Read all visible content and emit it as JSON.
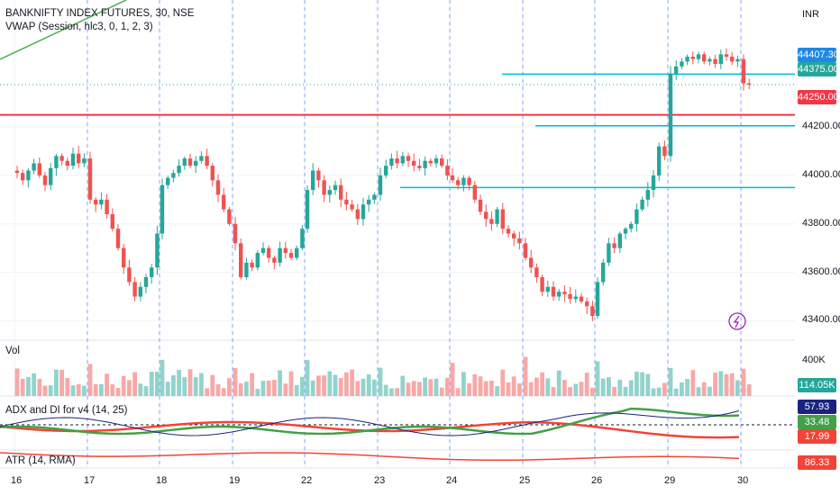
{
  "header": {
    "symbol": "BANKNIFTY INDEX FUTURES, 30, NSE",
    "indicator": "VWAP (Session, hlc3, 0, 1, 2, 3)",
    "currency": "INR"
  },
  "panes": {
    "volume_label": "Vol",
    "adx_label": "ADX and DI for v4 (14, 25)",
    "atr_label": "ATR (14, RMA)"
  },
  "price_tags": {
    "vwap": "44407.30",
    "last": "44375.00",
    "hline": "44250.00",
    "volume": "114.05K",
    "adx_plus": "57.93",
    "adx_mid": "33.48",
    "adx_minus": "17.99",
    "atr": "86.33"
  },
  "colors": {
    "up": "#26a69a",
    "down": "#ef5350",
    "vol_up": "#92d3cc",
    "vol_down": "#f7a9a7",
    "hline_red": "#f23645",
    "hline_cyan": "#00bcd4",
    "session_sep": "#2962ff",
    "grid": "#f0f3fa",
    "vwap_green": "#4caf50",
    "adx_navy": "#1a237e",
    "adx_green": "#43a047",
    "adx_red": "#f44336",
    "atr_red": "#f44336"
  },
  "chart_data": {
    "type": "candlestick",
    "title": "BANKNIFTY INDEX FUTURES, 30, NSE",
    "y_axis_ticks": [
      43400,
      43600,
      43800,
      44000,
      44200
    ],
    "y_tick_labels": [
      "43400.00",
      "43600.00",
      "43800.00",
      "44000.00",
      "44200.00"
    ],
    "ylim": [
      43320,
      44620
    ],
    "x_tick_labels": [
      "16",
      "17",
      "18",
      "19",
      "22",
      "23",
      "24",
      "25",
      "26",
      "29",
      "30"
    ],
    "volume_tick_label": "400K",
    "horizontal_lines": [
      {
        "price": 44418,
        "color": "cyan",
        "from_label": "25",
        "to_label": "end"
      },
      {
        "price": 44250,
        "color": "red",
        "from_label": "start",
        "to_label": "end"
      },
      {
        "price": 44205,
        "color": "cyan",
        "from_label": "25",
        "to_label": "end"
      },
      {
        "price": 43950,
        "color": "cyan",
        "from_label": "23",
        "to_label": "end"
      }
    ],
    "sessions": [
      {
        "day": "16",
        "closes": [
          44010,
          43980,
          44020,
          44050,
          44000,
          43960,
          44030,
          44080,
          44060,
          44040,
          44090,
          44050,
          44070
        ]
      },
      {
        "day": "17",
        "closes": [
          43900,
          43880,
          43900,
          43840,
          43780,
          43700,
          43620,
          43560,
          43500,
          43540,
          43580,
          43620,
          43760
        ]
      },
      {
        "day": "18",
        "closes": [
          43960,
          43990,
          44010,
          44040,
          44070,
          44040,
          44060,
          44080,
          44040,
          43980,
          43920,
          43860,
          43800
        ]
      },
      {
        "day": "19",
        "closes": [
          43720,
          43580,
          43640,
          43620,
          43680,
          43700,
          43660,
          43640,
          43700,
          43680,
          43660,
          43700,
          43780
        ]
      },
      {
        "day": "22",
        "closes": [
          43940,
          44020,
          43980,
          43920,
          43940,
          43960,
          43900,
          43880,
          43860,
          43820,
          43880,
          43900,
          43920
        ]
      },
      {
        "day": "23",
        "closes": [
          44000,
          44040,
          44070,
          44050,
          44080,
          44060,
          44040,
          44030,
          44060,
          44050,
          44070,
          44040,
          44000
        ]
      },
      {
        "day": "24",
        "closes": [
          43980,
          43960,
          43990,
          43960,
          43900,
          43850,
          43820,
          43800,
          43860,
          43780,
          43760,
          43740,
          43720
        ]
      },
      {
        "day": "25",
        "closes": [
          43660,
          43620,
          43580,
          43520,
          43540,
          43500,
          43520,
          43510,
          43490,
          43500,
          43480,
          43460,
          43420
        ]
      },
      {
        "day": "26",
        "closes": [
          43560,
          43640,
          43720,
          43700,
          43760,
          43780,
          43800,
          43860,
          43900,
          43940,
          44000,
          44120,
          44080
        ]
      },
      {
        "day": "29",
        "closes": [
          44420,
          44450,
          44470,
          44490,
          44480,
          44500,
          44470,
          44480,
          44460,
          44500,
          44490,
          44470,
          44480
        ]
      },
      {
        "day": "30",
        "closes": [
          44380,
          44375
        ]
      }
    ]
  }
}
